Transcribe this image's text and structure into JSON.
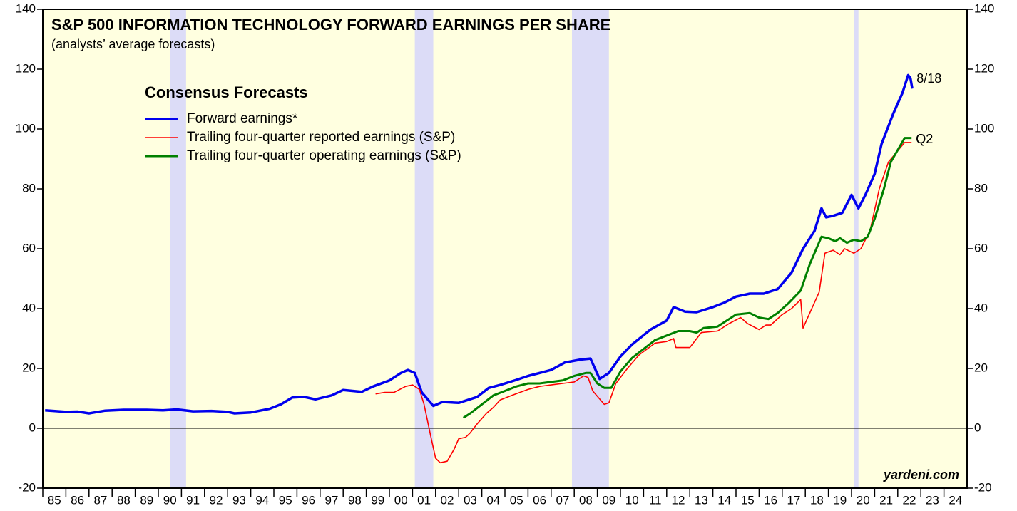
{
  "chart_data": {
    "type": "line",
    "title": "S&P 500 INFORMATION TECHNOLOGY FORWARD EARNINGS PER SHARE",
    "subtitle": "(analysts’ average forecasts)",
    "legend_title": "Consensus Forecasts",
    "source": "yardeni.com",
    "background": "#ffffe0",
    "recession_color": "#dcdcf7",
    "recessions": [
      [
        1990.5,
        1991.2
      ],
      [
        2001.1,
        2001.9
      ],
      [
        2007.9,
        2009.5
      ],
      [
        2020.1,
        2020.3
      ]
    ],
    "xlim": [
      1985,
      2025
    ],
    "ylim": [
      -20,
      140
    ],
    "yticks": [
      -20,
      0,
      20,
      40,
      60,
      80,
      100,
      120,
      140
    ],
    "y2lim": [
      -20,
      140
    ],
    "y2ticks": [
      -20,
      0,
      20,
      40,
      60,
      80,
      100,
      120,
      140
    ],
    "xticks": [
      {
        "value": 1985,
        "label": "85"
      },
      {
        "value": 1986,
        "label": "86"
      },
      {
        "value": 1987,
        "label": "87"
      },
      {
        "value": 1988,
        "label": "88"
      },
      {
        "value": 1989,
        "label": "89"
      },
      {
        "value": 1990,
        "label": "90"
      },
      {
        "value": 1991,
        "label": "91"
      },
      {
        "value": 1992,
        "label": "92"
      },
      {
        "value": 1993,
        "label": "93"
      },
      {
        "value": 1994,
        "label": "94"
      },
      {
        "value": 1995,
        "label": "95"
      },
      {
        "value": 1996,
        "label": "96"
      },
      {
        "value": 1997,
        "label": "97"
      },
      {
        "value": 1998,
        "label": "98"
      },
      {
        "value": 1999,
        "label": "99"
      },
      {
        "value": 2000,
        "label": "00"
      },
      {
        "value": 2001,
        "label": "01"
      },
      {
        "value": 2002,
        "label": "02"
      },
      {
        "value": 2003,
        "label": "03"
      },
      {
        "value": 2004,
        "label": "04"
      },
      {
        "value": 2005,
        "label": "05"
      },
      {
        "value": 2006,
        "label": "06"
      },
      {
        "value": 2007,
        "label": "07"
      },
      {
        "value": 2008,
        "label": "08"
      },
      {
        "value": 2009,
        "label": "09"
      },
      {
        "value": 2010,
        "label": "10"
      },
      {
        "value": 2011,
        "label": "11"
      },
      {
        "value": 2012,
        "label": "12"
      },
      {
        "value": 2013,
        "label": "13"
      },
      {
        "value": 2014,
        "label": "14"
      },
      {
        "value": 2015,
        "label": "15"
      },
      {
        "value": 2016,
        "label": "16"
      },
      {
        "value": 2017,
        "label": "17"
      },
      {
        "value": 2018,
        "label": "18"
      },
      {
        "value": 2019,
        "label": "19"
      },
      {
        "value": 2020,
        "label": "20"
      },
      {
        "value": 2021,
        "label": "21"
      },
      {
        "value": 2022,
        "label": "22"
      },
      {
        "value": 2023,
        "label": "23"
      },
      {
        "value": 2024,
        "label": "24"
      }
    ],
    "series": [
      {
        "name": "Forward earnings*",
        "color": "#0000ee",
        "width": 3.5,
        "end_label": "8/18",
        "x": [
          1985.1,
          1986,
          1986.5,
          1987,
          1987.7,
          1988.5,
          1989.5,
          1990.2,
          1990.8,
          1991.5,
          1992.3,
          1993,
          1993.3,
          1994,
          1994.8,
          1995.3,
          1995.8,
          1996.3,
          1996.8,
          1997.5,
          1998,
          1998.8,
          1999.3,
          2000,
          2000.5,
          2000.8,
          2001.1,
          2001.4,
          2001.9,
          2002.3,
          2003,
          2003.8,
          2004.3,
          2004.8,
          2005.5,
          2006,
          2007,
          2007.6,
          2008.3,
          2008.7,
          2009.1,
          2009.5,
          2010,
          2010.5,
          2011.3,
          2012,
          2012.3,
          2012.8,
          2013.3,
          2014,
          2014.5,
          2015,
          2015.6,
          2016.2,
          2016.8,
          2017.4,
          2017.9,
          2018.4,
          2018.7,
          2018.9,
          2019.2,
          2019.6,
          2020,
          2020.3,
          2020.6,
          2021,
          2021.3,
          2021.8,
          2022.2,
          2022.45,
          2022.55,
          2022.63
        ],
        "values": [
          6,
          5.5,
          5.6,
          5,
          5.9,
          6.2,
          6.2,
          6,
          6.3,
          5.7,
          5.8,
          5.5,
          5,
          5.3,
          6.5,
          8,
          10.3,
          10.5,
          9.7,
          11,
          12.8,
          12.2,
          14,
          16,
          18.5,
          19.5,
          18.5,
          12,
          7.5,
          8.8,
          8.5,
          10.5,
          13.5,
          14.5,
          16.2,
          17.5,
          19.5,
          22,
          23,
          23.3,
          16.5,
          18.5,
          24,
          28,
          33,
          36,
          40.5,
          39,
          38.8,
          40.5,
          42,
          44,
          45,
          45,
          46.5,
          52,
          60,
          66,
          73.5,
          70.5,
          71,
          72,
          78,
          73.5,
          78,
          85,
          95,
          105,
          112,
          118,
          117,
          113.5
        ]
      },
      {
        "name": "Trailing four-quarter reported earnings (S&P)",
        "color": "#ff0000",
        "width": 1.6,
        "end_label": "Q2",
        "x": [
          1999.4,
          1999.8,
          2000.2,
          2000.7,
          2001,
          2001.3,
          2001.5,
          2001.8,
          2002,
          2002.2,
          2002.5,
          2002.8,
          2003,
          2003.3,
          2003.5,
          2003.8,
          2004.2,
          2004.5,
          2004.8,
          2005.3,
          2006,
          2006.5,
          2007,
          2007.5,
          2008,
          2008.4,
          2008.6,
          2008.8,
          2009.3,
          2009.5,
          2009.8,
          2010.3,
          2010.8,
          2011.5,
          2012,
          2012.3,
          2012.4,
          2013,
          2013.5,
          2014.2,
          2014.7,
          2015.2,
          2015.5,
          2016,
          2016.3,
          2016.5,
          2017,
          2017.4,
          2017.8,
          2017.9,
          2018.6,
          2018.85,
          2019.2,
          2019.5,
          2019.7,
          2020.1,
          2020.4,
          2020.8,
          2021.2,
          2021.6,
          2022.3,
          2022.6
        ],
        "values": [
          11.5,
          12,
          12,
          14,
          14.5,
          13,
          8,
          -3,
          -10,
          -11.5,
          -11,
          -7,
          -3.5,
          -3,
          -1.5,
          1.5,
          5,
          7,
          9.5,
          11,
          13,
          14,
          14.5,
          15,
          15.5,
          17.5,
          17,
          12.5,
          8,
          8.5,
          15,
          20,
          24.5,
          28.5,
          29,
          30,
          27,
          27,
          32,
          32.5,
          35,
          37,
          35,
          33,
          34.5,
          34.5,
          38,
          40,
          43,
          33.5,
          45.5,
          58.5,
          59.5,
          58,
          60,
          58.5,
          60,
          66,
          80,
          89,
          95.5,
          95.5
        ]
      },
      {
        "name": "Trailing four-quarter operating earnings (S&P)",
        "color": "#008000",
        "width": 3,
        "end_label": "Q2",
        "x": [
          2003.2,
          2003.5,
          2004,
          2004.5,
          2005,
          2005.5,
          2006,
          2006.5,
          2007,
          2007.5,
          2008,
          2008.5,
          2008.7,
          2009,
          2009.3,
          2009.6,
          2010,
          2010.5,
          2011,
          2011.5,
          2012,
          2012.5,
          2013,
          2013.3,
          2013.6,
          2014.2,
          2014.5,
          2015,
          2015.6,
          2016,
          2016.4,
          2016.8,
          2017.3,
          2017.8,
          2018.2,
          2018.7,
          2019,
          2019.3,
          2019.5,
          2019.8,
          2020.1,
          2020.4,
          2020.7,
          2021,
          2021.4,
          2021.7,
          2022.3,
          2022.6
        ],
        "values": [
          3.5,
          5,
          8,
          11,
          12.5,
          14,
          15,
          15,
          15.5,
          16,
          17.5,
          18.5,
          18.5,
          15,
          13.5,
          13.5,
          19,
          23.5,
          26.5,
          29.5,
          31,
          32.5,
          32.5,
          32,
          33.5,
          34,
          35.5,
          38,
          38.5,
          37,
          36.5,
          38.5,
          42,
          46,
          55,
          64,
          63.5,
          62.5,
          63.5,
          62,
          63,
          62.5,
          64,
          70,
          80,
          89,
          97,
          97
        ]
      }
    ]
  }
}
